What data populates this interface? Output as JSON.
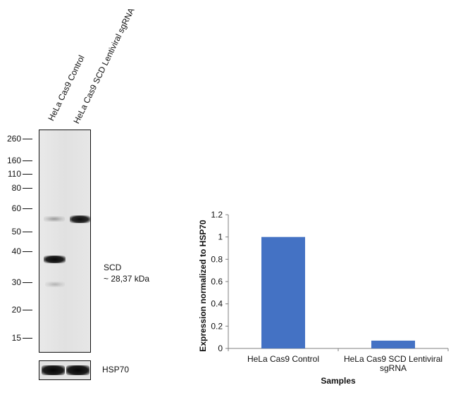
{
  "blot": {
    "lanes": [
      "HeLa Cas9 Control",
      "HeLa Cas9 SCD Lentiviral sgRNA"
    ],
    "markers": [
      "260",
      "160",
      "110",
      "80",
      "60",
      "50",
      "40",
      "30",
      "20",
      "15"
    ],
    "target_label": "SCD",
    "target_kda": "~ 28,37 kDa",
    "loading_control": "HSP70"
  },
  "chart_data": {
    "type": "bar",
    "categories": [
      "HeLa Cas9 Control",
      "HeLa Cas9 SCD Lentiviral sgRNA"
    ],
    "category_lines": [
      [
        "HeLa Cas9 Control"
      ],
      [
        "HeLa Cas9 SCD Lentiviral",
        "sgRNA"
      ]
    ],
    "values": [
      1.0,
      0.07
    ],
    "title": "",
    "xlabel": "Samples",
    "ylabel": "Expression normalized to HSP70",
    "ylim": [
      0,
      1.2
    ],
    "yticks": [
      "0",
      "0.2",
      "0.4",
      "0.6",
      "0.8",
      "1",
      "1.2"
    ],
    "ytick_values": [
      0,
      0.2,
      0.4,
      0.6,
      0.8,
      1.0,
      1.2
    ],
    "bar_color": "#4472C4",
    "grid": false,
    "legend": false
  }
}
